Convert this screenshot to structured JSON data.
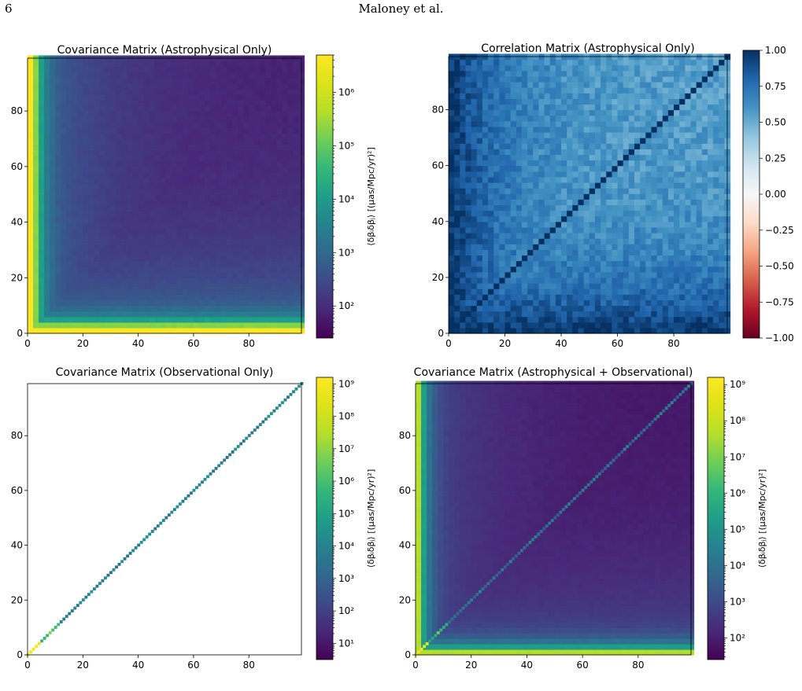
{
  "page": {
    "page_number": "6",
    "authors": "Maloney et al."
  },
  "colors": {
    "background": "#ffffff",
    "axis": "#000000",
    "obs_empty": "#ffffff"
  },
  "chart_data": [
    {
      "id": "cov_astro",
      "type": "heatmap",
      "title": "Covariance Matrix (Astrophysical Only)",
      "x_ticks": [
        0,
        20,
        40,
        60,
        80
      ],
      "y_ticks": [
        0,
        20,
        40,
        60,
        80
      ],
      "xlim": [
        0,
        99
      ],
      "ylim": [
        0,
        99
      ],
      "matrix_size": 100,
      "colormap": "viridis",
      "color_scale": "log",
      "colorbar": {
        "label": "⟨δβᵢδβⱼ⟩ [(μas/Mpc/yr)²]",
        "tick_labels": [
          "10²",
          "10³",
          "10⁴",
          "10⁵",
          "10⁶"
        ],
        "tick_exponents": [
          2,
          3,
          4,
          5,
          6
        ],
        "range_exponent": [
          1.4,
          6.7
        ]
      },
      "diagonal_peak": false,
      "astro_base": true
    },
    {
      "id": "corr_astro",
      "type": "heatmap",
      "title": "Correlation Matrix (Astrophysical Only)",
      "x_ticks": [
        0,
        20,
        40,
        60,
        80
      ],
      "y_ticks": [
        0,
        20,
        40,
        60,
        80
      ],
      "xlim": [
        0,
        99
      ],
      "ylim": [
        0,
        99
      ],
      "matrix_size": 100,
      "colormap": "RdBu",
      "color_scale": "linear",
      "colorbar": {
        "label": "",
        "tick_labels": [
          "1.00",
          "0.75",
          "0.50",
          "0.25",
          "0.00",
          "−0.25",
          "−0.50",
          "−0.75",
          "−1.00"
        ],
        "tick_values": [
          1.0,
          0.75,
          0.5,
          0.25,
          0.0,
          -0.25,
          -0.5,
          -0.75,
          -1.0
        ],
        "range": [
          -1.0,
          1.0
        ]
      }
    },
    {
      "id": "cov_obs",
      "type": "heatmap",
      "title": "Covariance Matrix (Observational Only)",
      "x_ticks": [
        0,
        20,
        40,
        60,
        80
      ],
      "y_ticks": [
        0,
        20,
        40,
        60,
        80
      ],
      "xlim": [
        0,
        99
      ],
      "ylim": [
        0,
        99
      ],
      "matrix_size": 100,
      "colormap": "viridis",
      "color_scale": "log",
      "colorbar": {
        "label": "⟨δβᵢδβⱼ⟩ [(μas/Mpc/yr)²]",
        "tick_labels": [
          "10¹",
          "10²",
          "10³",
          "10⁴",
          "10⁵",
          "10⁶",
          "10⁷",
          "10⁸",
          "10⁹"
        ],
        "tick_exponents": [
          1,
          2,
          3,
          4,
          5,
          6,
          7,
          8,
          9
        ],
        "range_exponent": [
          0.5,
          9.2
        ]
      },
      "diagonal_only": true
    },
    {
      "id": "cov_total",
      "type": "heatmap",
      "title": "Covariance Matrix (Astrophysical + Observational)",
      "x_ticks": [
        0,
        20,
        40,
        60,
        80
      ],
      "y_ticks": [
        0,
        20,
        40,
        60,
        80
      ],
      "xlim": [
        0,
        99
      ],
      "ylim": [
        0,
        99
      ],
      "matrix_size": 100,
      "colormap": "viridis",
      "color_scale": "log",
      "colorbar": {
        "label": "⟨δβᵢδβⱼ⟩ [(μas/Mpc/yr)²]",
        "tick_labels": [
          "10²",
          "10³",
          "10⁴",
          "10⁵",
          "10⁶",
          "10⁷",
          "10⁸",
          "10⁹"
        ],
        "tick_exponents": [
          2,
          3,
          4,
          5,
          6,
          7,
          8,
          9
        ],
        "range_exponent": [
          1.4,
          9.2
        ]
      },
      "diagonal_peak": true,
      "astro_base": true
    }
  ]
}
